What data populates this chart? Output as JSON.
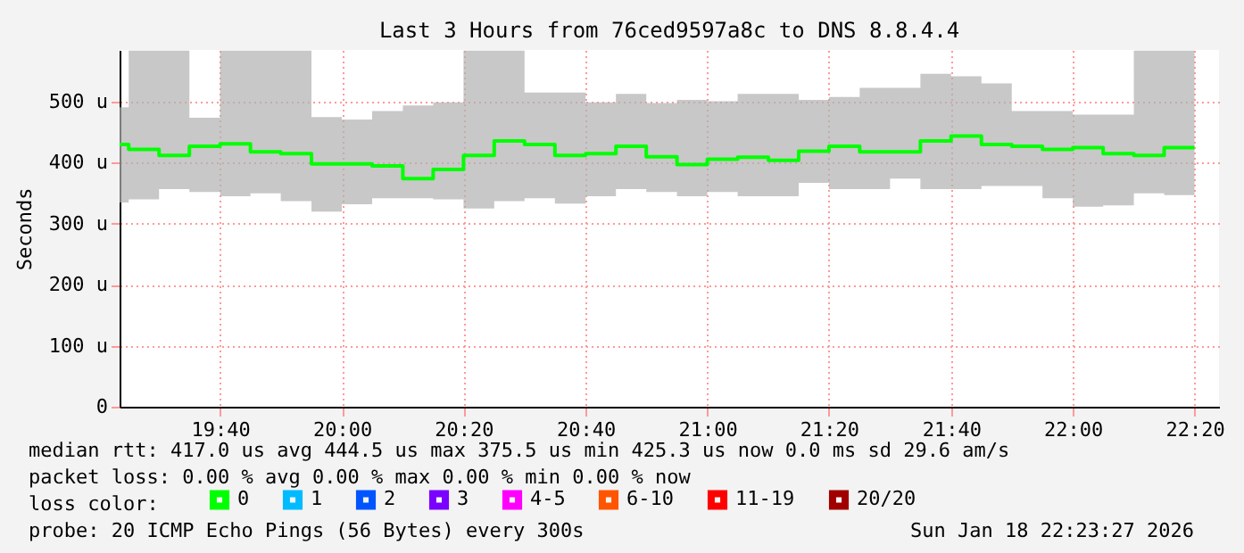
{
  "chart_data": {
    "type": "step",
    "title": "Last 3 Hours from 76ced9597a8c to DNS 8.8.4.4",
    "ylabel": "Seconds",
    "legend_title": "loss color:",
    "legend": "bottom",
    "grid": true,
    "xlim": [
      19.392,
      22.4
    ],
    "xticks": [
      {
        "value": 19.667,
        "label": "19:40"
      },
      {
        "value": 20,
        "label": "20:00"
      },
      {
        "value": 20.333,
        "label": "20:20"
      },
      {
        "value": 20.667,
        "label": "20:40"
      },
      {
        "value": 21,
        "label": "21:00"
      },
      {
        "value": 21.333,
        "label": "21:20"
      },
      {
        "value": 21.667,
        "label": "21:40"
      },
      {
        "value": 22,
        "label": "22:00"
      },
      {
        "value": 22.333,
        "label": "22:20"
      }
    ],
    "ylim": [
      0,
      585
    ],
    "yticks": [
      0,
      {
        "value": 100,
        "label": "100 u"
      },
      {
        "value": 200,
        "label": "200 u"
      },
      {
        "value": 300,
        "label": "300 u"
      },
      {
        "value": 400,
        "label": "400 u"
      },
      {
        "value": 500,
        "label": "500 u"
      }
    ],
    "x": [
      19.392,
      19.417,
      19.5,
      19.583,
      19.667,
      19.75,
      19.833,
      19.917,
      20,
      20.083,
      20.167,
      20.25,
      20.333,
      20.417,
      20.5,
      20.583,
      20.667,
      20.75,
      20.833,
      20.917,
      21,
      21.083,
      21.167,
      21.25,
      21.333,
      21.417,
      21.5,
      21.583,
      21.667,
      21.75,
      21.833,
      21.917,
      22,
      22.083,
      22.167,
      22.25,
      22.333
    ],
    "series": [
      {
        "name": "0",
        "color": "#00ff00",
        "values": [
          430,
          422,
          412,
          427,
          431,
          418,
          415,
          398,
          398,
          395,
          374,
          389,
          412,
          436,
          430,
          412,
          415,
          427,
          410,
          397,
          406,
          409,
          404,
          419,
          427,
          418,
          418,
          436,
          444,
          430,
          427,
          422,
          425,
          415,
          412,
          425,
          425
        ],
        "lower": [
          335,
          340,
          357,
          352,
          345,
          350,
          337,
          320,
          332,
          342,
          342,
          340,
          325,
          337,
          342,
          333,
          345,
          357,
          352,
          345,
          352,
          345,
          345,
          367,
          357,
          357,
          374,
          357,
          357,
          362,
          362,
          342,
          328,
          330,
          350,
          347,
          347
        ],
        "upper": [
          491,
          584,
          584,
          474,
          584,
          584,
          584,
          475,
          471,
          485,
          494,
          499,
          584,
          584,
          515,
          515,
          499,
          513,
          498,
          503,
          501,
          513,
          513,
          503,
          508,
          523,
          523,
          546,
          542,
          530,
          485,
          485,
          479,
          479,
          584,
          584,
          584
        ]
      },
      {
        "name": "1",
        "color": "#00bbff",
        "values": [
          null,
          null,
          null,
          null,
          null,
          null,
          null,
          null,
          null,
          null,
          null,
          null,
          null,
          null,
          null,
          null,
          null,
          null,
          null,
          null,
          null,
          null,
          null,
          null,
          null,
          null,
          null,
          null,
          null,
          null,
          null,
          null,
          null,
          null,
          null,
          null,
          null
        ]
      },
      {
        "name": "2",
        "color": "#0055ff",
        "values": [
          null,
          null,
          null,
          null,
          null,
          null,
          null,
          null,
          null,
          null,
          null,
          null,
          null,
          null,
          null,
          null,
          null,
          null,
          null,
          null,
          null,
          null,
          null,
          null,
          null,
          null,
          null,
          null,
          null,
          null,
          null,
          null,
          null,
          null,
          null,
          null,
          null
        ]
      },
      {
        "name": "3",
        "color": "#7a00ff",
        "values": [
          null,
          null,
          null,
          null,
          null,
          null,
          null,
          null,
          null,
          null,
          null,
          null,
          null,
          null,
          null,
          null,
          null,
          null,
          null,
          null,
          null,
          null,
          null,
          null,
          null,
          null,
          null,
          null,
          null,
          null,
          null,
          null,
          null,
          null,
          null,
          null,
          null
        ]
      },
      {
        "name": "4-5",
        "color": "#ff00ff",
        "values": [
          null,
          null,
          null,
          null,
          null,
          null,
          null,
          null,
          null,
          null,
          null,
          null,
          null,
          null,
          null,
          null,
          null,
          null,
          null,
          null,
          null,
          null,
          null,
          null,
          null,
          null,
          null,
          null,
          null,
          null,
          null,
          null,
          null,
          null,
          null,
          null,
          null
        ]
      },
      {
        "name": "6-10",
        "color": "#ff5500",
        "values": [
          null,
          null,
          null,
          null,
          null,
          null,
          null,
          null,
          null,
          null,
          null,
          null,
          null,
          null,
          null,
          null,
          null,
          null,
          null,
          null,
          null,
          null,
          null,
          null,
          null,
          null,
          null,
          null,
          null,
          null,
          null,
          null,
          null,
          null,
          null,
          null,
          null
        ]
      },
      {
        "name": "11-19",
        "color": "#ff0000",
        "values": [
          null,
          null,
          null,
          null,
          null,
          null,
          null,
          null,
          null,
          null,
          null,
          null,
          null,
          null,
          null,
          null,
          null,
          null,
          null,
          null,
          null,
          null,
          null,
          null,
          null,
          null,
          null,
          null,
          null,
          null,
          null,
          null,
          null,
          null,
          null,
          null,
          null
        ]
      },
      {
        "name": "20/20",
        "color": "#a00000",
        "values": [
          null,
          null,
          null,
          null,
          null,
          null,
          null,
          null,
          null,
          null,
          null,
          null,
          null,
          null,
          null,
          null,
          null,
          null,
          null,
          null,
          null,
          null,
          null,
          null,
          null,
          null,
          null,
          null,
          null,
          null,
          null,
          null,
          null,
          null,
          null,
          null,
          null
        ]
      }
    ],
    "annotations": [
      "median rtt:  417.0 us avg  444.5 us max  375.5 us min  425.3 us now  0.0 ms sd  29.6   am/s",
      "packet loss: 0.00 % avg  0.00 % max  0.00 % min  0.00 % now",
      "probe:       20 ICMP Echo Pings (56 Bytes) every 300s",
      "Sun Jan 18 22:23:27 2026"
    ]
  }
}
